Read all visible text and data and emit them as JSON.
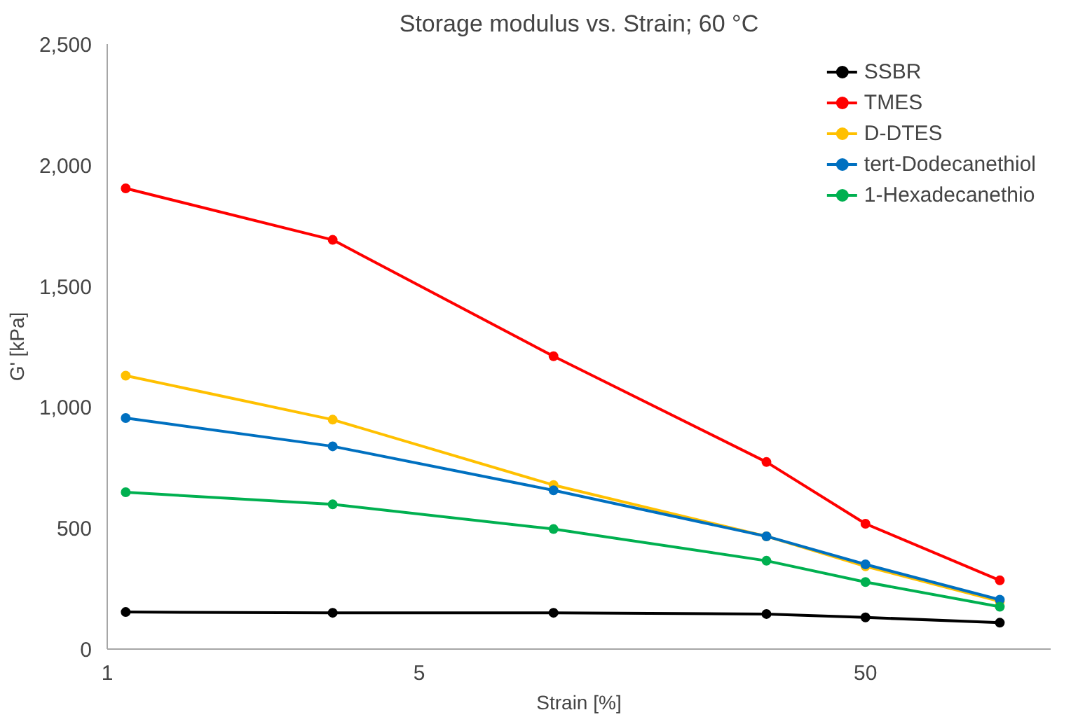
{
  "chart_data": {
    "type": "line",
    "title": "Storage modulus vs. Strain; 60 °C",
    "xlabel": "Strain [%]",
    "ylabel": "G' [kPa]",
    "log": "x",
    "x": [
      1.1,
      3.2,
      10,
      30,
      50,
      100
    ],
    "xlim": [
      1,
      130
    ],
    "xticks": [
      1,
      5,
      50
    ],
    "ylim": [
      0,
      2500
    ],
    "yticks": [
      {
        "value": 0,
        "label": "0"
      },
      {
        "value": 500,
        "label": "500"
      },
      {
        "value": 1000,
        "label": "1,000"
      },
      {
        "value": 1500,
        "label": "1,500"
      },
      {
        "value": 2000,
        "label": "2,000"
      },
      {
        "value": 2500,
        "label": "2,500"
      }
    ],
    "grid": false,
    "legend": "top right",
    "marker": "circle",
    "line_style": "solid",
    "series": [
      {
        "name": "SSBR",
        "color": "#000000",
        "values": [
          153,
          150,
          150,
          145,
          131,
          109
        ]
      },
      {
        "name": "TMES",
        "color": "#ff0000",
        "values": [
          1904,
          1691,
          1210,
          773,
          518,
          284
        ]
      },
      {
        "name": "D-DTES",
        "color": "#ffc000",
        "values": [
          1130,
          948,
          678,
          466,
          342,
          197
        ]
      },
      {
        "name": "tert-Dodecanethiol",
        "color": "#0070c0",
        "values": [
          955,
          838,
          656,
          466,
          350,
          204
        ]
      },
      {
        "name": "1-Hexadecanethio",
        "color": "#00b050",
        "values": [
          648,
          598,
          496,
          365,
          277,
          175
        ]
      }
    ]
  }
}
